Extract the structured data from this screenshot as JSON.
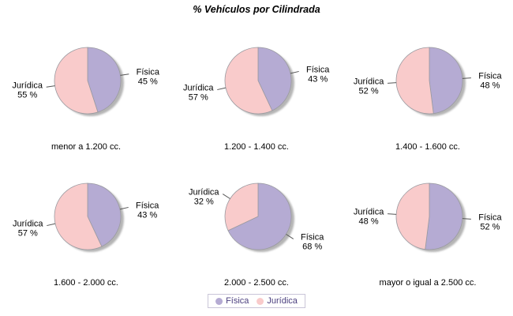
{
  "colors": {
    "fisica": "#B5ABD3",
    "juridica": "#F9CBCB",
    "shadow": "#A3A3A3",
    "outline": "#9A9AA0",
    "leader": "#555555",
    "label_text": "#000000",
    "legend_text": "#4B3F7F",
    "legend_border": "#C9C5D8",
    "background": "#FFFFFF"
  },
  "chart_data": {
    "type": "pie",
    "title": "% Vehículos por Cilindrada",
    "legend": {
      "position": "bottom",
      "entries": [
        "Física",
        "Jurídica"
      ]
    },
    "series_colors": [
      "#B5ABD3",
      "#F9CBCB"
    ],
    "start_angle_deg_clockwise_from_top": 0,
    "pies": [
      {
        "category": "menor a 1.200 cc.",
        "slices": [
          {
            "name": "Física",
            "value": 45,
            "display": "45 %"
          },
          {
            "name": "Jurídica",
            "value": 55,
            "display": "55 %"
          }
        ]
      },
      {
        "category": "1.200 - 1.400 cc.",
        "slices": [
          {
            "name": "Física",
            "value": 43,
            "display": "43 %"
          },
          {
            "name": "Jurídica",
            "value": 57,
            "display": "57 %"
          }
        ]
      },
      {
        "category": "1.400 - 1.600 cc.",
        "slices": [
          {
            "name": "Física",
            "value": 48,
            "display": "48 %"
          },
          {
            "name": "Jurídica",
            "value": 52,
            "display": "52 %"
          }
        ]
      },
      {
        "category": "1.600 - 2.000 cc.",
        "slices": [
          {
            "name": "Física",
            "value": 43,
            "display": "43 %"
          },
          {
            "name": "Jurídica",
            "value": 57,
            "display": "57 %"
          }
        ]
      },
      {
        "category": "2.000 - 2.500 cc.",
        "slices": [
          {
            "name": "Física",
            "value": 68,
            "display": "68 %"
          },
          {
            "name": "Jurídica",
            "value": 32,
            "display": "32 %"
          }
        ]
      },
      {
        "category": "mayor o igual a 2.500 cc.",
        "slices": [
          {
            "name": "Física",
            "value": 52,
            "display": "52 %"
          },
          {
            "name": "Jurídica",
            "value": 48,
            "display": "48 %"
          }
        ]
      }
    ]
  }
}
